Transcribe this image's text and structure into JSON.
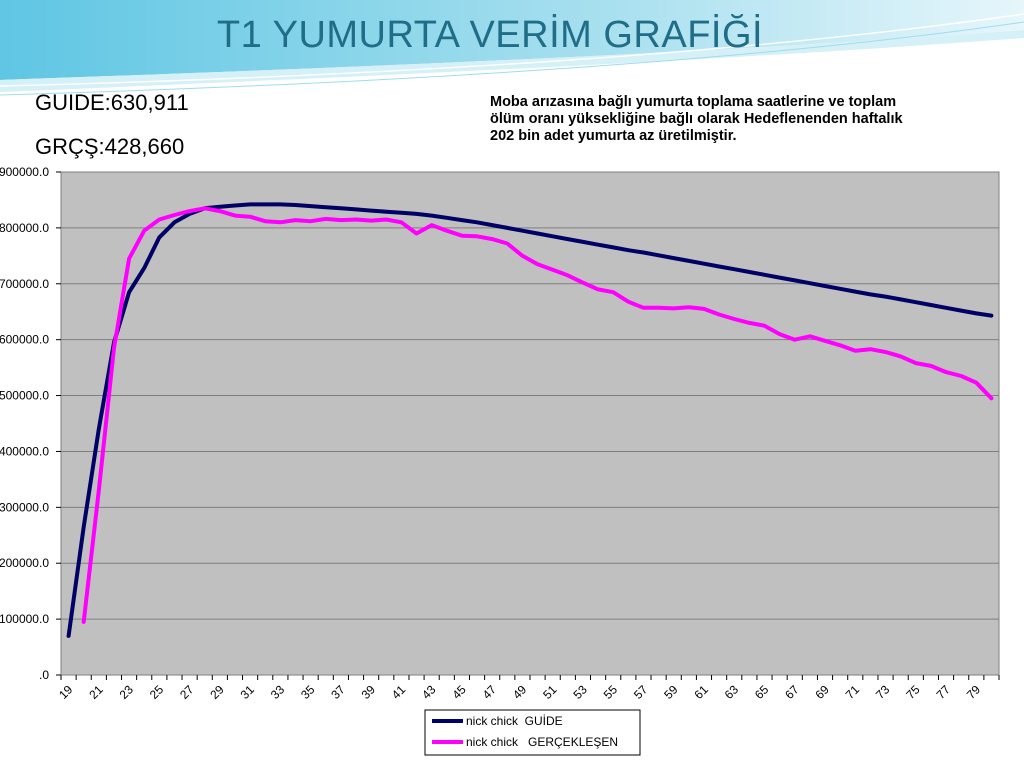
{
  "slide": {
    "title": "T1 YUMURTA VERİM GRAFİĞİ",
    "guide_stat": "GUIDE:630,911",
    "actual_stat": "GRÇŞ:428,660",
    "note": "Moba arızasına bağlı yumurta toplama saatlerine ve toplam ölüm oranı yüksekliğine bağlı olarak Hedeflenenden haftalık 202 bin  adet yumurta az üretilmiştir."
  },
  "colors": {
    "title": "#1f6d86",
    "plot_bg": "#c0c0c0",
    "guide_line": "#000066",
    "actual_line": "#ff00ff",
    "gridline": "#7f7f7f"
  },
  "chart_data": {
    "type": "line",
    "title": "",
    "xlabel": "",
    "ylabel": "",
    "grid": true,
    "legend_position": "bottom",
    "ylim": [
      0,
      900000
    ],
    "y_ticks": [
      0,
      100000,
      200000,
      300000,
      400000,
      500000,
      600000,
      700000,
      800000,
      900000
    ],
    "y_tick_labels": [
      ".0",
      "100000.0",
      "200000.0",
      "300000.0",
      "400000.0",
      "500000.0",
      "600000.0",
      "700000.0",
      "800000.0",
      "900000.0"
    ],
    "x_tick_labels": [
      "19",
      "21",
      "23",
      "25",
      "27",
      "29",
      "31",
      "33",
      "35",
      "37",
      "39",
      "41",
      "43",
      "45",
      "47",
      "49",
      "51",
      "53",
      "55",
      "57",
      "59",
      "61",
      "63",
      "65",
      "67",
      "69",
      "71",
      "73",
      "75",
      "77",
      "79"
    ],
    "x": [
      19,
      20,
      21,
      22,
      23,
      24,
      25,
      26,
      27,
      28,
      29,
      30,
      31,
      32,
      33,
      34,
      35,
      36,
      37,
      38,
      39,
      40,
      41,
      42,
      43,
      44,
      45,
      46,
      47,
      48,
      49,
      50,
      51,
      52,
      53,
      54,
      55,
      56,
      57,
      58,
      59,
      60,
      61,
      62,
      63,
      64,
      65,
      66,
      67,
      68,
      69,
      70,
      71,
      72,
      73,
      74,
      75,
      76,
      77,
      78,
      79,
      80
    ],
    "series": [
      {
        "name": "nick chick  GUİDE",
        "color": "#000066",
        "x": [
          19,
          20,
          21,
          22,
          23,
          24,
          25,
          26,
          27,
          28,
          29,
          30,
          31,
          32,
          33,
          34,
          35,
          36,
          37,
          38,
          39,
          40,
          41,
          42,
          43,
          44,
          45,
          46,
          47,
          48,
          49,
          50,
          51,
          52,
          53,
          54,
          55,
          56,
          57,
          58,
          59,
          60,
          61,
          62,
          63,
          64,
          65,
          66,
          67,
          68,
          69,
          70,
          71,
          72,
          73,
          74,
          75,
          76,
          77,
          78,
          79,
          80
        ],
        "values": [
          70000,
          265000,
          440000,
          595000,
          685000,
          728000,
          783000,
          810000,
          825000,
          835000,
          838000,
          840000,
          842000,
          842000,
          842000,
          841000,
          839000,
          837000,
          835000,
          833000,
          831000,
          829000,
          827000,
          825000,
          822000,
          818000,
          814000,
          810000,
          805000,
          800000,
          795000,
          790000,
          785000,
          780000,
          775000,
          770000,
          765000,
          760000,
          756000,
          751000,
          746000,
          741000,
          736000,
          731000,
          726000,
          721000,
          716000,
          711000,
          706000,
          701000,
          696000,
          691000,
          686000,
          681000,
          677000,
          672000,
          667000,
          662000,
          657000,
          652000,
          647000,
          643000
        ]
      },
      {
        "name": "nick chick   GERÇEKLEŞEN",
        "color": "#ff00ff",
        "x": [
          20,
          21,
          22,
          23,
          24,
          25,
          26,
          27,
          28,
          29,
          30,
          31,
          32,
          33,
          34,
          35,
          36,
          37,
          38,
          39,
          40,
          41,
          42,
          43,
          44,
          45,
          46,
          47,
          48,
          49,
          50,
          51,
          52,
          53,
          54,
          55,
          56,
          57,
          58,
          59,
          60,
          61,
          62,
          63,
          64,
          65,
          66,
          67,
          68,
          69,
          70,
          71,
          72,
          73,
          74,
          75,
          76,
          77,
          78,
          79,
          80
        ],
        "values": [
          95000,
          330000,
          585000,
          745000,
          795000,
          815000,
          823000,
          830000,
          835000,
          830000,
          822000,
          820000,
          812000,
          810000,
          814000,
          812000,
          816000,
          814000,
          815000,
          813000,
          815000,
          810000,
          790000,
          805000,
          795000,
          786000,
          785000,
          780000,
          772000,
          750000,
          735000,
          725000,
          715000,
          702000,
          690000,
          685000,
          668000,
          657000,
          657000,
          656000,
          658000,
          655000,
          645000,
          637000,
          630000,
          625000,
          610000,
          600000,
          606000,
          598000,
          590000,
          580000,
          583000,
          578000,
          570000,
          558000,
          553000,
          542000,
          535000,
          523000,
          495000
        ]
      }
    ]
  }
}
